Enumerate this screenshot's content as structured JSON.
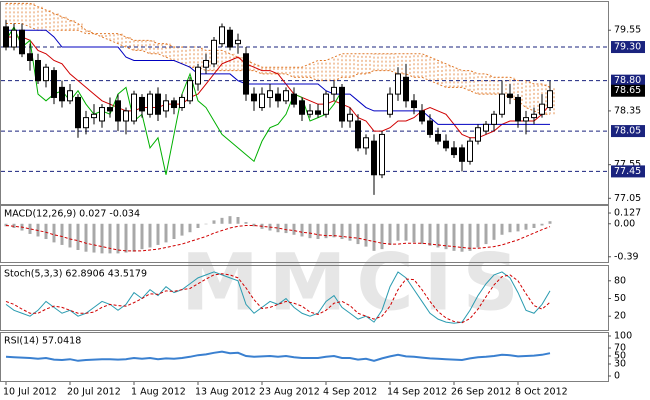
{
  "chart_data": [
    {
      "type": "candlestick",
      "watermark": "MMCIS",
      "categories": [
        "10 Jul 2012",
        null,
        null,
        null,
        null,
        null,
        null,
        null,
        "20 Jul 2012",
        null,
        null,
        null,
        null,
        null,
        null,
        null,
        "1 Aug 2012",
        null,
        null,
        null,
        null,
        null,
        null,
        null,
        "13 Aug 2012",
        null,
        null,
        null,
        null,
        null,
        null,
        null,
        "23 Aug 2012",
        null,
        null,
        null,
        null,
        null,
        null,
        null,
        "4 Sep 2012",
        null,
        null,
        null,
        null,
        null,
        null,
        null,
        "14 Sep 2012",
        null,
        null,
        null,
        null,
        null,
        null,
        null,
        "26 Sep 2012",
        null,
        null,
        null,
        null,
        null,
        null,
        null,
        "8 Oct 2012",
        null,
        null,
        null,
        null
      ],
      "open": [
        79.6,
        79.3,
        79.55,
        79.2,
        79.1,
        78.8,
        78.95,
        78.7,
        78.5,
        78.55,
        78.1,
        78.25,
        78.2,
        78.4,
        78.5,
        78.2,
        78.2,
        78.55,
        78.3,
        78.6,
        78.35,
        78.5,
        78.4,
        78.5,
        78.75,
        79.0,
        79.05,
        79.35,
        79.55,
        79.35,
        79.2,
        78.6,
        78.4,
        78.55,
        78.6,
        78.5,
        78.6,
        78.5,
        78.3,
        78.35,
        78.3,
        78.6,
        78.7,
        78.2,
        78.2,
        77.8,
        77.9,
        77.4,
        78.3,
        78.6,
        78.85,
        78.5,
        78.35,
        78.2,
        78.0,
        77.9,
        77.8,
        77.8,
        77.6,
        77.9,
        78.05,
        78.15,
        78.3,
        78.6,
        78.55,
        78.2,
        78.25,
        78.3,
        78.4
      ],
      "high": [
        79.7,
        79.65,
        79.65,
        79.35,
        79.2,
        79.05,
        79.0,
        78.8,
        78.75,
        78.6,
        78.35,
        78.45,
        78.45,
        78.55,
        78.6,
        78.4,
        78.65,
        78.6,
        78.65,
        78.7,
        78.6,
        78.55,
        78.6,
        78.85,
        79.05,
        79.2,
        79.45,
        79.65,
        79.6,
        79.5,
        79.3,
        78.7,
        78.7,
        78.75,
        78.7,
        78.7,
        78.7,
        78.55,
        78.45,
        78.45,
        78.65,
        78.8,
        78.75,
        78.4,
        78.3,
        78.0,
        78.0,
        78.05,
        78.7,
        79.0,
        79.05,
        78.6,
        78.45,
        78.3,
        78.1,
        78.0,
        77.9,
        77.85,
        77.95,
        78.15,
        78.2,
        78.35,
        78.8,
        78.75,
        78.6,
        78.35,
        78.4,
        78.6,
        78.8
      ],
      "low": [
        79.25,
        79.25,
        79.15,
        78.95,
        78.75,
        78.7,
        78.45,
        78.4,
        78.45,
        77.95,
        78.0,
        78.15,
        78.1,
        78.25,
        78.05,
        78.0,
        78.15,
        78.25,
        78.25,
        78.2,
        78.25,
        78.3,
        78.35,
        78.45,
        78.65,
        78.9,
        79.0,
        79.3,
        79.25,
        79.2,
        78.5,
        78.35,
        78.35,
        78.4,
        78.4,
        78.45,
        78.4,
        78.2,
        78.25,
        78.25,
        78.25,
        78.5,
        78.1,
        78.1,
        77.75,
        77.7,
        77.1,
        77.35,
        78.25,
        78.5,
        78.4,
        78.3,
        78.15,
        77.95,
        77.85,
        77.75,
        77.65,
        77.45,
        77.55,
        77.85,
        78.0,
        78.05,
        78.25,
        78.45,
        78.1,
        78.0,
        78.15,
        78.25,
        78.35
      ],
      "close": [
        79.3,
        79.55,
        79.2,
        79.1,
        78.8,
        79.0,
        78.55,
        78.5,
        78.65,
        78.1,
        78.25,
        78.3,
        78.4,
        78.35,
        78.2,
        78.35,
        78.6,
        78.35,
        78.6,
        78.3,
        78.5,
        78.4,
        78.55,
        78.8,
        79.0,
        79.1,
        79.4,
        79.6,
        79.3,
        79.4,
        78.6,
        78.5,
        78.6,
        78.65,
        78.5,
        78.65,
        78.45,
        78.3,
        78.35,
        78.3,
        78.6,
        78.7,
        78.2,
        78.3,
        77.8,
        77.95,
        77.4,
        78.0,
        78.6,
        78.9,
        78.5,
        78.4,
        78.2,
        78.0,
        77.9,
        77.8,
        77.7,
        77.6,
        77.9,
        78.1,
        78.15,
        78.3,
        78.6,
        78.55,
        78.2,
        78.25,
        78.3,
        78.45,
        78.65
      ],
      "up_color": "#ffffff",
      "down_color": "#000000",
      "cloud": {
        "color": "#e07828",
        "span_a": [
          79.95,
          79.95,
          79.95,
          79.95,
          79.9,
          79.85,
          79.8,
          79.75,
          79.7,
          79.65,
          79.55,
          79.5,
          79.45,
          79.4,
          79.35,
          79.3,
          79.25,
          79.25,
          79.2,
          79.2,
          79.15,
          79.1,
          79.05,
          79.0,
          79.0,
          78.95,
          78.95,
          78.95,
          78.95,
          78.95,
          78.95,
          78.95,
          78.9,
          78.9,
          78.9,
          78.9,
          78.85,
          78.85,
          78.85,
          78.8,
          78.8,
          78.8,
          78.85,
          78.85,
          78.9,
          78.9,
          78.95,
          78.95,
          78.95,
          78.9,
          78.9,
          78.85,
          78.85,
          78.8,
          78.75,
          78.7,
          78.7,
          78.7,
          78.65,
          78.6,
          78.6,
          78.6,
          78.6,
          78.55,
          78.5,
          78.4,
          78.35,
          78.3,
          78.3
        ],
        "span_b": [
          79.65,
          79.65,
          79.65,
          79.6,
          79.55,
          79.55,
          79.55,
          79.55,
          79.55,
          79.55,
          79.5,
          79.5,
          79.5,
          79.5,
          79.5,
          79.45,
          79.4,
          79.4,
          79.4,
          79.35,
          79.35,
          79.3,
          79.3,
          79.3,
          79.3,
          79.25,
          79.25,
          79.25,
          79.2,
          79.15,
          79.1,
          79.05,
          79.0,
          79.0,
          79.0,
          79.0,
          79.0,
          79.0,
          79.05,
          79.1,
          79.1,
          79.15,
          79.2,
          79.2,
          79.2,
          79.2,
          79.2,
          79.2,
          79.2,
          79.2,
          79.2,
          79.2,
          79.2,
          79.15,
          79.1,
          79.05,
          79.0,
          78.95,
          78.95,
          78.9,
          78.9,
          78.85,
          78.85,
          78.85,
          78.8,
          78.8,
          78.75,
          78.75,
          78.7
        ]
      },
      "lines": [
        {
          "color": "#d00000",
          "values": [
            79.45,
            79.45,
            79.45,
            79.4,
            79.25,
            79.2,
            79.1,
            79.05,
            78.9,
            78.8,
            78.7,
            78.6,
            78.5,
            78.45,
            78.4,
            78.35,
            78.35,
            78.4,
            78.4,
            78.4,
            78.45,
            78.45,
            78.45,
            78.55,
            78.6,
            78.75,
            78.9,
            79.05,
            79.1,
            79.15,
            79.05,
            79.0,
            78.95,
            78.95,
            78.9,
            78.75,
            78.6,
            78.55,
            78.5,
            78.45,
            78.45,
            78.5,
            78.45,
            78.4,
            78.25,
            78.2,
            78.05,
            78.05,
            78.1,
            78.2,
            78.2,
            78.25,
            78.35,
            78.4,
            78.35,
            78.3,
            78.15,
            78.0,
            77.95,
            77.95,
            78.0,
            78.05,
            78.15,
            78.2,
            78.2,
            78.2,
            78.2,
            78.3,
            78.45
          ]
        },
        {
          "color": "#0000c0",
          "values": [
            79.55,
            79.55,
            79.55,
            79.55,
            79.55,
            79.55,
            79.45,
            79.3,
            79.3,
            79.3,
            79.3,
            79.3,
            79.3,
            79.3,
            79.3,
            79.15,
            79.1,
            79.1,
            79.1,
            79.1,
            79.1,
            79.1,
            79.05,
            79.0,
            78.9,
            78.9,
            78.9,
            78.9,
            78.9,
            78.8,
            78.75,
            78.75,
            78.75,
            78.75,
            78.75,
            78.75,
            78.75,
            78.75,
            78.75,
            78.75,
            78.65,
            78.6,
            78.6,
            78.6,
            78.5,
            78.4,
            78.35,
            78.35,
            78.35,
            78.35,
            78.35,
            78.35,
            78.35,
            78.25,
            78.15,
            78.15,
            78.15,
            78.15,
            78.15,
            78.15,
            78.15,
            78.15,
            78.15,
            78.15,
            78.15,
            78.15,
            78.15,
            78.15,
            78.15
          ]
        },
        {
          "color": "#00b000",
          "values": [
            79.4,
            79.6,
            79.3,
            79.4,
            78.6,
            78.5,
            78.6,
            78.65,
            78.5,
            78.65,
            78.45,
            78.3,
            78.35,
            78.3,
            78.6,
            78.7,
            78.2,
            78.3,
            77.8,
            77.95,
            77.4,
            78.0,
            78.6,
            78.9,
            78.5,
            78.4,
            78.2,
            78.0,
            77.9,
            77.8,
            77.7,
            77.6,
            77.9,
            78.1,
            78.15,
            78.3,
            78.6,
            78.55,
            78.2,
            78.25,
            78.3,
            78.45,
            78.65,
            null,
            null,
            null,
            null,
            null,
            null,
            null,
            null,
            null,
            null,
            null,
            null,
            null,
            null,
            null,
            null,
            null,
            null,
            null,
            null,
            null,
            null,
            null,
            null,
            null,
            null
          ]
        }
      ],
      "ylim": [
        76.98,
        79.97
      ],
      "yticks": [
        79.55,
        78.35,
        77.55,
        77.05
      ],
      "levels": [
        {
          "value": 79.3,
          "label": "79.30"
        },
        {
          "value": 78.8,
          "label": "78.80"
        },
        78.05,
        77.45
      ],
      "level_color": "#1a237e",
      "last_price": 78.65,
      "last_price_color": "#000000"
    },
    {
      "type": "bar",
      "title": "MACD(12,26,9) 0.027 -0.034",
      "color": "#a8a8a8",
      "values": [
        -0.03,
        -0.05,
        -0.08,
        -0.12,
        -0.15,
        -0.18,
        -0.22,
        -0.25,
        -0.28,
        -0.31,
        -0.33,
        -0.34,
        -0.35,
        -0.35,
        -0.35,
        -0.34,
        -0.33,
        -0.3,
        -0.28,
        -0.25,
        -0.22,
        -0.18,
        -0.14,
        -0.1,
        -0.05,
        0.0,
        0.04,
        0.07,
        0.09,
        0.08,
        0.02,
        -0.03,
        -0.06,
        -0.08,
        -0.1,
        -0.11,
        -0.13,
        -0.15,
        -0.17,
        -0.18,
        -0.17,
        -0.16,
        -0.18,
        -0.2,
        -0.24,
        -0.27,
        -0.32,
        -0.3,
        -0.25,
        -0.2,
        -0.2,
        -0.22,
        -0.24,
        -0.26,
        -0.28,
        -0.3,
        -0.32,
        -0.33,
        -0.32,
        -0.28,
        -0.24,
        -0.19,
        -0.13,
        -0.1,
        -0.09,
        -0.07,
        -0.05,
        -0.02,
        0.03
      ],
      "signal": {
        "color": "#d00000",
        "values": [
          -0.02,
          -0.03,
          -0.04,
          -0.06,
          -0.08,
          -0.1,
          -0.13,
          -0.15,
          -0.18,
          -0.2,
          -0.23,
          -0.25,
          -0.27,
          -0.29,
          -0.31,
          -0.32,
          -0.32,
          -0.32,
          -0.31,
          -0.3,
          -0.28,
          -0.26,
          -0.24,
          -0.21,
          -0.18,
          -0.15,
          -0.11,
          -0.08,
          -0.05,
          -0.03,
          -0.02,
          -0.02,
          -0.03,
          -0.04,
          -0.05,
          -0.07,
          -0.08,
          -0.1,
          -0.11,
          -0.13,
          -0.14,
          -0.14,
          -0.15,
          -0.16,
          -0.17,
          -0.19,
          -0.21,
          -0.23,
          -0.24,
          -0.24,
          -0.23,
          -0.23,
          -0.23,
          -0.24,
          -0.25,
          -0.26,
          -0.27,
          -0.28,
          -0.29,
          -0.29,
          -0.28,
          -0.27,
          -0.25,
          -0.22,
          -0.19,
          -0.15,
          -0.11,
          -0.07,
          -0.034
        ]
      },
      "ylim": [
        -0.44,
        0.21
      ],
      "yticks": [
        0.127,
        {
          "value": 0,
          "label": "0.00"
        },
        -0.39
      ]
    },
    {
      "type": "line",
      "title": "Stoch(5,3,3) 62.8906 43.5179",
      "series": [
        {
          "color": "#2a9bb0",
          "dashed": false,
          "values": [
            40,
            30,
            25,
            20,
            30,
            45,
            35,
            25,
            30,
            20,
            25,
            35,
            45,
            40,
            30,
            40,
            60,
            50,
            65,
            55,
            70,
            60,
            65,
            75,
            85,
            90,
            95,
            90,
            85,
            80,
            40,
            25,
            35,
            45,
            40,
            50,
            35,
            25,
            20,
            25,
            45,
            55,
            35,
            25,
            15,
            20,
            10,
            30,
            70,
            95,
            85,
            65,
            45,
            25,
            15,
            10,
            8,
            10,
            30,
            55,
            75,
            90,
            95,
            85,
            60,
            30,
            25,
            40,
            63
          ]
        },
        {
          "color": "#d00000",
          "dashed": true,
          "values": [
            45,
            40,
            32,
            25,
            25,
            32,
            37,
            35,
            30,
            25,
            25,
            27,
            35,
            40,
            38,
            37,
            43,
            50,
            58,
            57,
            63,
            62,
            65,
            67,
            75,
            83,
            90,
            92,
            90,
            85,
            68,
            48,
            33,
            35,
            40,
            45,
            42,
            37,
            27,
            23,
            30,
            42,
            45,
            38,
            25,
            20,
            15,
            20,
            37,
            65,
            83,
            82,
            65,
            45,
            28,
            17,
            11,
            9,
            16,
            32,
            53,
            73,
            87,
            90,
            80,
            58,
            38,
            32,
            43.5
          ]
        }
      ],
      "ylim": [
        0,
        100
      ],
      "yticks": [
        80,
        50,
        20
      ]
    },
    {
      "type": "line",
      "title": "RSI(14) 57.0418",
      "series": [
        {
          "color": "#3a80d0",
          "dashed": false,
          "values": [
            48,
            47,
            46,
            45,
            43,
            45,
            41,
            40,
            42,
            38,
            40,
            41,
            42,
            42,
            41,
            42,
            45,
            43,
            45,
            42,
            44,
            43,
            45,
            48,
            52,
            54,
            58,
            61,
            57,
            58,
            50,
            48,
            49,
            50,
            48,
            50,
            47,
            45,
            45,
            45,
            48,
            50,
            45,
            45,
            41,
            43,
            38,
            44,
            49,
            53,
            49,
            48,
            46,
            44,
            43,
            42,
            41,
            40,
            44,
            47,
            48,
            50,
            53,
            52,
            49,
            50,
            51,
            53,
            57
          ]
        }
      ],
      "ylim": [
        0,
        100
      ],
      "yticks": [
        100,
        70,
        50,
        30,
        0
      ]
    }
  ]
}
